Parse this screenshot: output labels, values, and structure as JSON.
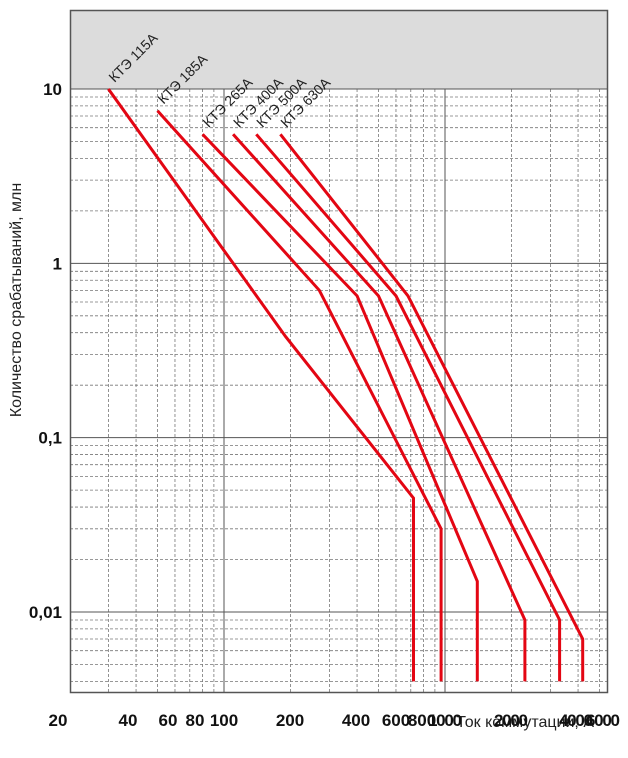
{
  "chart_data": {
    "type": "line",
    "title": "",
    "xlabel": "Ток коммутации, А",
    "ylabel": "Количество срабатываний, млн",
    "x_scale": "log",
    "y_scale": "log",
    "xlim": [
      20,
      6000
    ],
    "ylim": [
      0.004,
      40
    ],
    "grid": true,
    "x_ticks": [
      "20",
      "40",
      "60",
      "80",
      "100",
      "200",
      "400",
      "600",
      "800",
      "1000",
      "2000",
      "4000",
      "6000"
    ],
    "y_ticks": [
      "10",
      "1",
      "0,1",
      "0,01"
    ],
    "series": [
      {
        "name": "КТЭ 115А",
        "x": [
          30,
          190,
          720,
          720
        ],
        "y": [
          10,
          0.38,
          0.045,
          0.004
        ]
      },
      {
        "name": "КТЭ 185А",
        "x": [
          50,
          270,
          960,
          960
        ],
        "y": [
          7.5,
          0.7,
          0.03,
          0.004
        ]
      },
      {
        "name": "КТЭ 265А",
        "x": [
          80,
          400,
          1400,
          1400
        ],
        "y": [
          5.5,
          0.65,
          0.015,
          0.004
        ]
      },
      {
        "name": "КТЭ 400А",
        "x": [
          110,
          500,
          2300,
          2300
        ],
        "y": [
          5.5,
          0.65,
          0.009,
          0.004
        ]
      },
      {
        "name": "КТЭ 500А",
        "x": [
          140,
          600,
          3300,
          3300
        ],
        "y": [
          5.5,
          0.65,
          0.009,
          0.004
        ]
      },
      {
        "name": "КТЭ 630А",
        "x": [
          180,
          680,
          4200,
          4200
        ],
        "y": [
          5.5,
          0.65,
          0.007,
          0.004
        ]
      }
    ],
    "line_color": "#e30613"
  }
}
